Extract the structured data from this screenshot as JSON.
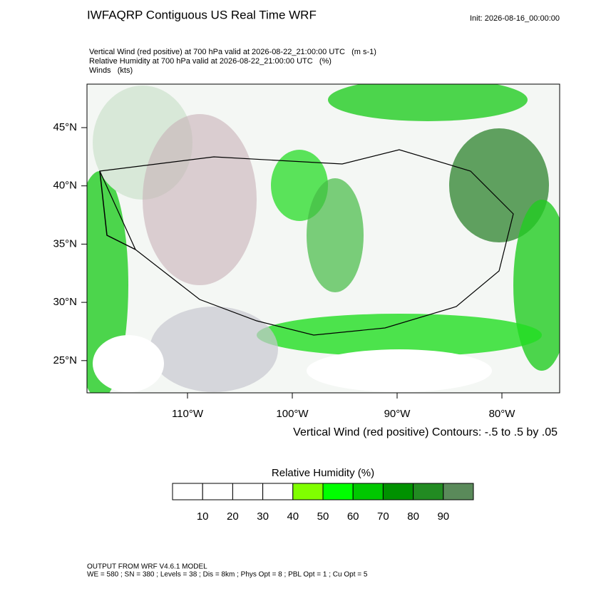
{
  "header": {
    "title": "IWFAQRP Contiguous US Real Time WRF",
    "init": "Init: 2026-08-16_00:00:00"
  },
  "fields": [
    "Vertical Wind (red positive) at 700 hPa valid at 2026-08-22_21:00:00 UTC   (m s-1)",
    "Relative Humidity at 700 hPa valid at 2026-08-22_21:00:00 UTC   (%)",
    "Winds   (kts)"
  ],
  "map": {
    "lat_labels": [
      "45°N",
      "40°N",
      "35°N",
      "30°N",
      "25°N"
    ],
    "lon_labels": [
      "110°W",
      "100°W",
      "90°W",
      "80°W"
    ],
    "contour_note": "Vertical Wind (red positive) Contours: -.5 to .5 by .05"
  },
  "colorbar": {
    "title": "Relative Humidity  (%)",
    "labels": [
      10,
      20,
      30,
      40,
      50,
      60,
      70,
      80,
      90
    ],
    "colors": [
      "#ffffff",
      "#ffffff",
      "#ffffff",
      "#ffffff",
      "#80ff00",
      "#00ff00",
      "#00c800",
      "#009100",
      "#228b22",
      "#5a8a5a"
    ]
  },
  "footer": {
    "lines": [
      "OUTPUT FROM WRF V4.6.1 MODEL",
      "WE = 580 ; SN = 380 ; Levels = 38 ; Dis = 8km ; Phys Opt = 8 ; PBL Opt = 1 ; Cu Opt = 5"
    ]
  }
}
